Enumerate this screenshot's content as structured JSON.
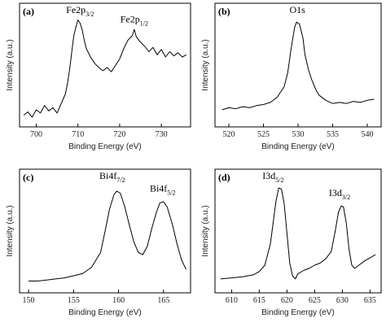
{
  "chart_data": [
    {
      "type": "line",
      "panel_label": "(a)",
      "xlabel": "Binding Energy (eV)",
      "ylabel": "Intensity (a.u.)",
      "xlim": [
        696,
        737
      ],
      "ylim": [
        0,
        1
      ],
      "xticks": [
        700,
        710,
        720,
        730
      ],
      "annotations": [
        {
          "base": "Fe2p",
          "sub": "3/2",
          "x": 710.5,
          "y": 1.0
        },
        {
          "base": "Fe2p",
          "sub": "1/2",
          "x": 723.5,
          "y": 0.91
        }
      ],
      "series": [
        {
          "points": [
            [
              697,
              0.05
            ],
            [
              698,
              0.08
            ],
            [
              699,
              0.03
            ],
            [
              700,
              0.1
            ],
            [
              701,
              0.07
            ],
            [
              702,
              0.14
            ],
            [
              703,
              0.09
            ],
            [
              704,
              0.12
            ],
            [
              705,
              0.07
            ],
            [
              706,
              0.16
            ],
            [
              707,
              0.25
            ],
            [
              707.5,
              0.35
            ],
            [
              708,
              0.48
            ],
            [
              708.5,
              0.64
            ],
            [
              709,
              0.8
            ],
            [
              709.5,
              0.88
            ],
            [
              710,
              0.95
            ],
            [
              710.5,
              0.92
            ],
            [
              711,
              0.86
            ],
            [
              711.5,
              0.76
            ],
            [
              712,
              0.68
            ],
            [
              713,
              0.6
            ],
            [
              714,
              0.54
            ],
            [
              715,
              0.5
            ],
            [
              716,
              0.47
            ],
            [
              717,
              0.5
            ],
            [
              718,
              0.46
            ],
            [
              719,
              0.52
            ],
            [
              720,
              0.58
            ],
            [
              721,
              0.68
            ],
            [
              722,
              0.76
            ],
            [
              723,
              0.8
            ],
            [
              723.5,
              0.86
            ],
            [
              724,
              0.79
            ],
            [
              725,
              0.74
            ],
            [
              726,
              0.7
            ],
            [
              727,
              0.65
            ],
            [
              728,
              0.69
            ],
            [
              729,
              0.62
            ],
            [
              730,
              0.67
            ],
            [
              731,
              0.6
            ],
            [
              732,
              0.65
            ],
            [
              733,
              0.61
            ],
            [
              734,
              0.64
            ],
            [
              735,
              0.6
            ],
            [
              736,
              0.62
            ]
          ]
        }
      ]
    },
    {
      "type": "line",
      "panel_label": "(b)",
      "xlabel": "Binding Energy (eV)",
      "ylabel": "Intensity (a.u.)",
      "xlim": [
        518,
        542
      ],
      "ylim": [
        0,
        1
      ],
      "xticks": [
        520,
        525,
        530,
        535,
        540
      ],
      "annotations": [
        {
          "base": "O1s",
          "sub": "",
          "x": 529.9,
          "y": 1.0
        }
      ],
      "series": [
        {
          "points": [
            [
              519,
              0.1
            ],
            [
              520,
              0.12
            ],
            [
              521,
              0.11
            ],
            [
              522,
              0.13
            ],
            [
              523,
              0.12
            ],
            [
              524,
              0.14
            ],
            [
              525,
              0.15
            ],
            [
              526,
              0.17
            ],
            [
              527,
              0.22
            ],
            [
              528,
              0.32
            ],
            [
              528.5,
              0.45
            ],
            [
              529,
              0.68
            ],
            [
              529.5,
              0.88
            ],
            [
              529.8,
              0.93
            ],
            [
              530.2,
              0.91
            ],
            [
              530.7,
              0.78
            ],
            [
              531,
              0.62
            ],
            [
              531.5,
              0.48
            ],
            [
              532,
              0.38
            ],
            [
              532.5,
              0.3
            ],
            [
              533,
              0.24
            ],
            [
              534,
              0.19
            ],
            [
              535,
              0.16
            ],
            [
              536,
              0.17
            ],
            [
              537,
              0.16
            ],
            [
              538,
              0.18
            ],
            [
              539,
              0.17
            ],
            [
              540,
              0.19
            ],
            [
              541,
              0.2
            ]
          ]
        }
      ]
    },
    {
      "type": "line",
      "panel_label": "(c)",
      "xlabel": "Binding Energy (eV)",
      "ylabel": "Intensity (a.u.)",
      "xlim": [
        149,
        168
      ],
      "ylim": [
        0,
        1
      ],
      "xticks": [
        150,
        155,
        160,
        165
      ],
      "annotations": [
        {
          "base": "Bi4f",
          "sub": "7/2",
          "x": 159.3,
          "y": 1.0
        },
        {
          "base": "Bi4f",
          "sub": "5/2",
          "x": 164.9,
          "y": 0.88
        }
      ],
      "series": [
        {
          "points": [
            [
              150,
              0.05
            ],
            [
              151,
              0.05
            ],
            [
              152,
              0.06
            ],
            [
              153,
              0.07
            ],
            [
              154,
              0.08
            ],
            [
              155,
              0.1
            ],
            [
              156,
              0.12
            ],
            [
              157,
              0.18
            ],
            [
              158,
              0.32
            ],
            [
              158.5,
              0.52
            ],
            [
              159,
              0.73
            ],
            [
              159.5,
              0.87
            ],
            [
              159.8,
              0.9
            ],
            [
              160.2,
              0.88
            ],
            [
              160.7,
              0.75
            ],
            [
              161.2,
              0.58
            ],
            [
              161.7,
              0.42
            ],
            [
              162.2,
              0.32
            ],
            [
              162.7,
              0.3
            ],
            [
              163.2,
              0.38
            ],
            [
              163.7,
              0.55
            ],
            [
              164.2,
              0.7
            ],
            [
              164.6,
              0.79
            ],
            [
              165,
              0.8
            ],
            [
              165.4,
              0.75
            ],
            [
              166,
              0.58
            ],
            [
              166.5,
              0.4
            ],
            [
              167,
              0.25
            ],
            [
              167.5,
              0.16
            ]
          ]
        }
      ]
    },
    {
      "type": "line",
      "panel_label": "(d)",
      "xlabel": "Binding Energy (eV)",
      "ylabel": "Intensity (a.u.)",
      "xlim": [
        607,
        637
      ],
      "ylim": [
        0,
        1
      ],
      "xticks": [
        610,
        615,
        620,
        625,
        630,
        635
      ],
      "annotations": [
        {
          "base": "I3d",
          "sub": "5/2",
          "x": 617.5,
          "y": 1.0
        },
        {
          "base": "I3d",
          "sub": "3/2",
          "x": 629.5,
          "y": 0.84
        }
      ],
      "series": [
        {
          "points": [
            [
              608,
              0.07
            ],
            [
              610,
              0.08
            ],
            [
              612,
              0.09
            ],
            [
              614,
              0.11
            ],
            [
              615,
              0.14
            ],
            [
              616,
              0.2
            ],
            [
              617,
              0.4
            ],
            [
              617.5,
              0.6
            ],
            [
              618,
              0.8
            ],
            [
              618.5,
              0.93
            ],
            [
              619,
              0.92
            ],
            [
              619.5,
              0.78
            ],
            [
              620,
              0.5
            ],
            [
              620.5,
              0.22
            ],
            [
              621,
              0.1
            ],
            [
              621.5,
              0.07
            ],
            [
              622,
              0.12
            ],
            [
              623,
              0.15
            ],
            [
              624,
              0.17
            ],
            [
              625,
              0.2
            ],
            [
              626,
              0.22
            ],
            [
              627,
              0.26
            ],
            [
              628,
              0.33
            ],
            [
              628.7,
              0.52
            ],
            [
              629.3,
              0.7
            ],
            [
              629.8,
              0.76
            ],
            [
              630.2,
              0.75
            ],
            [
              630.7,
              0.6
            ],
            [
              631.2,
              0.35
            ],
            [
              631.7,
              0.2
            ],
            [
              632.2,
              0.17
            ],
            [
              633,
              0.2
            ],
            [
              634,
              0.24
            ],
            [
              635,
              0.27
            ],
            [
              636,
              0.3
            ]
          ]
        }
      ]
    }
  ]
}
